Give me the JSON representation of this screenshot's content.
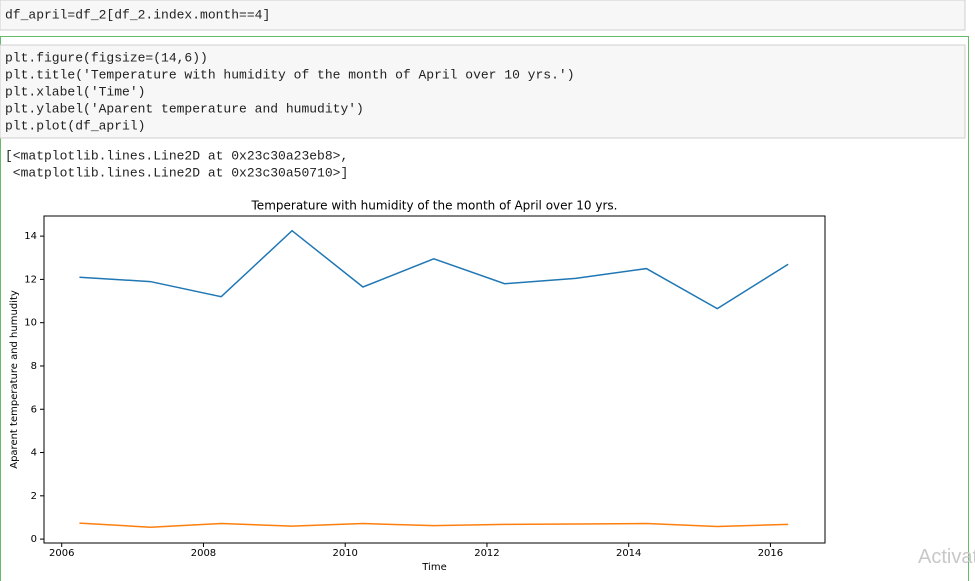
{
  "cells": [
    {
      "code": [
        "df_april=df_2[df_2.index.month==4]"
      ]
    },
    {
      "code": [
        "plt.figure(figsize=(14,6))",
        "plt.title('Temperature with humidity of the month of April over 10 yrs.')",
        "plt.xlabel('Time')",
        "plt.ylabel('Aparent temperature and humudity')",
        "plt.plot(df_april)"
      ],
      "output": [
        "[<matplotlib.lines.Line2D at 0x23c30a23eb8>,",
        " <matplotlib.lines.Line2D at 0x23c30a50710>]"
      ],
      "chart_data": {
        "type": "line",
        "title": "Temperature with humidity of the month of April over 10 yrs.",
        "xlabel": "Time",
        "ylabel": "Aparent temperature and humudity",
        "x": [
          2006.25,
          2007.25,
          2008.25,
          2009.25,
          2010.25,
          2011.25,
          2012.25,
          2013.25,
          2014.25,
          2015.25,
          2016.25
        ],
        "series": [
          {
            "color": "#1f77b4",
            "values": [
              12.1,
              11.9,
              11.2,
              14.25,
              11.65,
              12.95,
              11.8,
              12.05,
              12.5,
              10.65,
              12.7
            ]
          },
          {
            "color": "#ff7f0e",
            "values": [
              0.74,
              0.55,
              0.72,
              0.6,
              0.72,
              0.62,
              0.68,
              0.7,
              0.72,
              0.58,
              0.68
            ]
          }
        ],
        "xlim": [
          2005.75,
          2016.77
        ],
        "ylim": [
          -0.18,
          14.93
        ],
        "xticks": [
          2006,
          2008,
          2010,
          2012,
          2014,
          2016
        ],
        "yticks": [
          0,
          2,
          4,
          6,
          8,
          10,
          12,
          14
        ]
      }
    }
  ],
  "watermark": "Activat"
}
